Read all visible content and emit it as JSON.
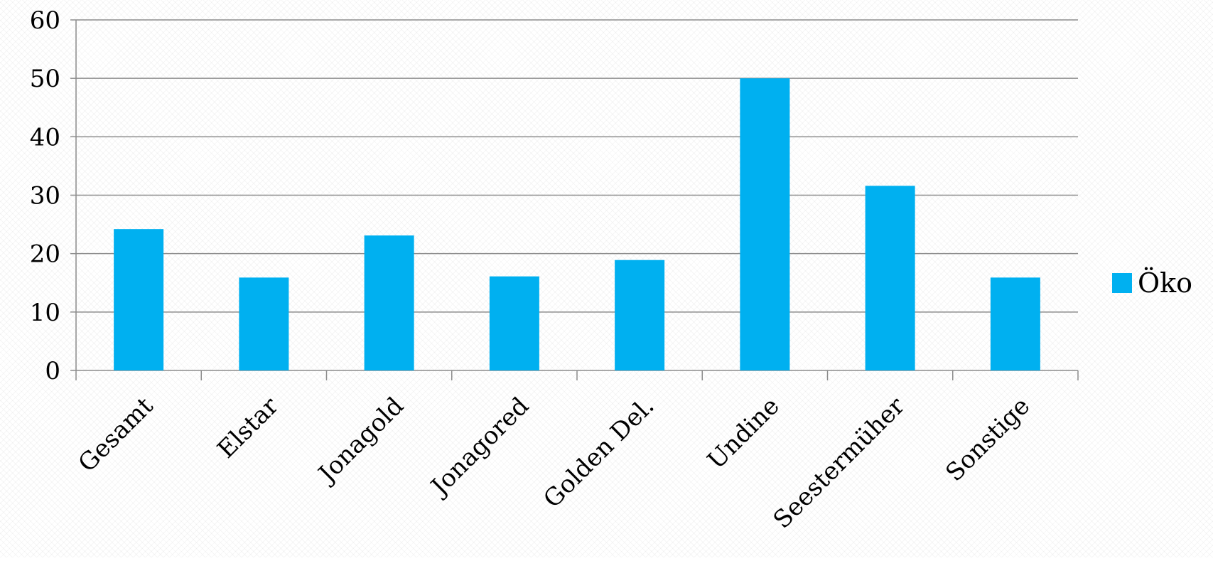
{
  "chart_data": {
    "type": "bar",
    "title": "",
    "xlabel": "",
    "ylabel": "",
    "categories": [
      "Gesamt",
      "Elstar",
      "Jonagold",
      "Jonagored",
      "Golden Del.",
      "Undine",
      "Seestermüher",
      "Sonstige"
    ],
    "series": [
      {
        "name": "Öko",
        "color": "#00B0F0",
        "values": [
          24.2,
          15.9,
          23.1,
          16.1,
          18.9,
          50,
          31.6,
          15.9
        ]
      }
    ],
    "ylim": [
      0,
      60
    ],
    "yticks": [
      0,
      10,
      20,
      30,
      40,
      50,
      60
    ],
    "grid": true,
    "legend_position": "right"
  }
}
